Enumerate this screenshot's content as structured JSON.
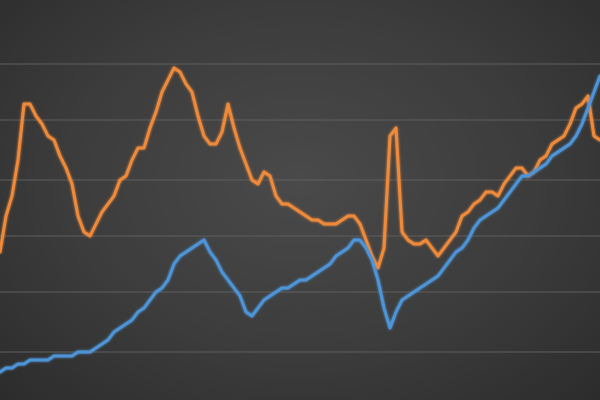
{
  "chart_data": {
    "type": "line",
    "title": "",
    "xlabel": "",
    "ylabel": "",
    "grid": true,
    "legend": "none",
    "xlim": [
      0,
      100
    ],
    "ylim": [
      0,
      100
    ],
    "gridlines": [
      12,
      27,
      41,
      55,
      70,
      84
    ],
    "series": [
      {
        "color": "#ef8a3a",
        "x": [
          0,
          1,
          2,
          3,
          4,
          5,
          6,
          7,
          8,
          9,
          10,
          11,
          12,
          13,
          14,
          15,
          16,
          17,
          18,
          19,
          20,
          21,
          22,
          23,
          24,
          25,
          26,
          27,
          28,
          29,
          30,
          31,
          32,
          33,
          34,
          35,
          36,
          37,
          38,
          39,
          40,
          41,
          42,
          43,
          44,
          45,
          46,
          47,
          48,
          49,
          50,
          51,
          52,
          53,
          54,
          55,
          56,
          57,
          58,
          59,
          60,
          61,
          62,
          63,
          64,
          65,
          66,
          67,
          68,
          69,
          70,
          71,
          72,
          73,
          74,
          75,
          76,
          77,
          78,
          79,
          80,
          81,
          82,
          83,
          84,
          85,
          86,
          87,
          88,
          89,
          90,
          91,
          92,
          93,
          94,
          95,
          96,
          97,
          98,
          99,
          100
        ],
        "values": [
          37,
          46,
          51,
          60,
          74,
          74,
          71,
          69,
          66,
          65,
          61,
          58,
          54,
          46,
          42,
          41,
          44,
          47,
          49,
          51,
          55,
          56,
          60,
          63,
          63,
          68,
          72,
          77,
          80,
          83,
          82,
          79,
          77,
          71,
          66,
          64,
          64,
          67,
          74,
          68,
          63,
          59,
          55,
          54,
          57,
          56,
          51,
          49,
          49,
          48,
          47,
          46,
          45,
          45,
          44,
          44,
          44,
          45,
          46,
          46,
          44,
          40,
          36,
          33,
          38,
          66,
          68,
          42,
          40,
          39,
          39,
          40,
          38,
          36,
          38,
          40,
          42,
          46,
          47,
          49,
          50,
          52,
          52,
          51,
          54,
          56,
          58,
          58,
          56,
          57,
          60,
          61,
          64,
          65,
          66,
          69,
          73,
          74,
          76,
          66,
          65
        ]
      },
      {
        "color": "#4d95d8",
        "x": [
          0,
          1,
          2,
          3,
          4,
          5,
          6,
          7,
          8,
          9,
          10,
          11,
          12,
          13,
          14,
          15,
          16,
          17,
          18,
          19,
          20,
          21,
          22,
          23,
          24,
          25,
          26,
          27,
          28,
          29,
          30,
          31,
          32,
          33,
          34,
          35,
          36,
          37,
          38,
          39,
          40,
          41,
          42,
          43,
          44,
          45,
          46,
          47,
          48,
          49,
          50,
          51,
          52,
          53,
          54,
          55,
          56,
          57,
          58,
          59,
          60,
          61,
          62,
          63,
          64,
          65,
          66,
          67,
          68,
          69,
          70,
          71,
          72,
          73,
          74,
          75,
          76,
          77,
          78,
          79,
          80,
          81,
          82,
          83,
          84,
          85,
          86,
          87,
          88,
          89,
          90,
          91,
          92,
          93,
          94,
          95,
          96,
          97,
          98,
          99,
          100
        ],
        "values": [
          7,
          8,
          8,
          9,
          9,
          10,
          10,
          10,
          10,
          11,
          11,
          11,
          11,
          12,
          12,
          12,
          13,
          14,
          15,
          17,
          18,
          19,
          20,
          22,
          23,
          25,
          27,
          28,
          30,
          34,
          36,
          37,
          38,
          39,
          40,
          37,
          35,
          32,
          30,
          28,
          26,
          22,
          21,
          23,
          25,
          26,
          27,
          28,
          28,
          29,
          30,
          30,
          31,
          32,
          33,
          34,
          36,
          37,
          38,
          40,
          40,
          38,
          35,
          30,
          23,
          18,
          22,
          25,
          26,
          27,
          28,
          29,
          30,
          31,
          33,
          35,
          37,
          38,
          40,
          43,
          45,
          46,
          47,
          48,
          50,
          52,
          54,
          56,
          56,
          57,
          58,
          59,
          61,
          62,
          63,
          64,
          66,
          69,
          73,
          77,
          81
        ]
      }
    ]
  }
}
